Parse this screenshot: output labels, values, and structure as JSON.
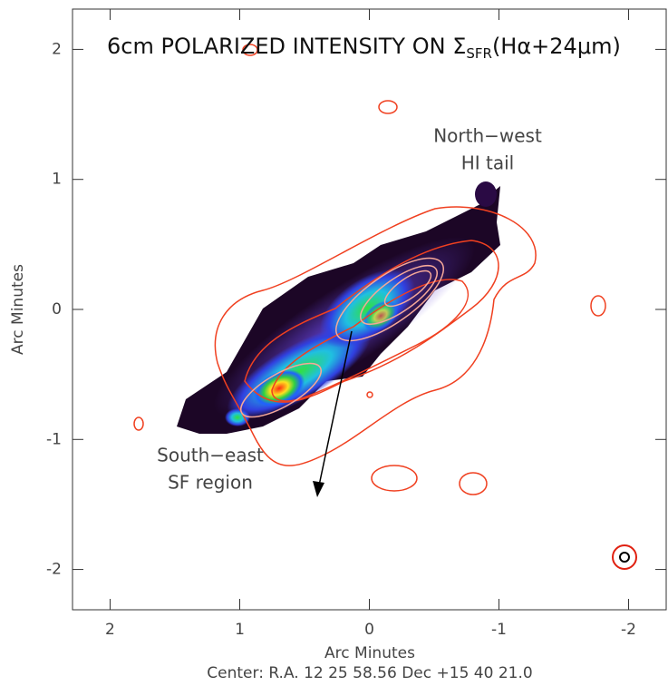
{
  "chart_data": {
    "type": "image",
    "title": [
      "6cm POLARIZED INTENSITY ON Σ",
      "SFR",
      "(Hα+24μm)"
    ],
    "xlabel": "Arc Minutes",
    "ylabel": "Arc Minutes",
    "footer": "Center:  R.A. 12 25 58.56     Dec  +15 40 21.0",
    "annotations": [
      "North−west",
      "HI tail",
      "South−east",
      "SF region"
    ],
    "xlim": [
      2.29,
      -2.29
    ],
    "ylim": [
      -2.31,
      2.31
    ],
    "xticks": [
      2,
      1,
      0,
      -1,
      -2
    ],
    "yticks": [
      -2,
      -1,
      0,
      1,
      2
    ],
    "contour_color": "#f04020"
  }
}
